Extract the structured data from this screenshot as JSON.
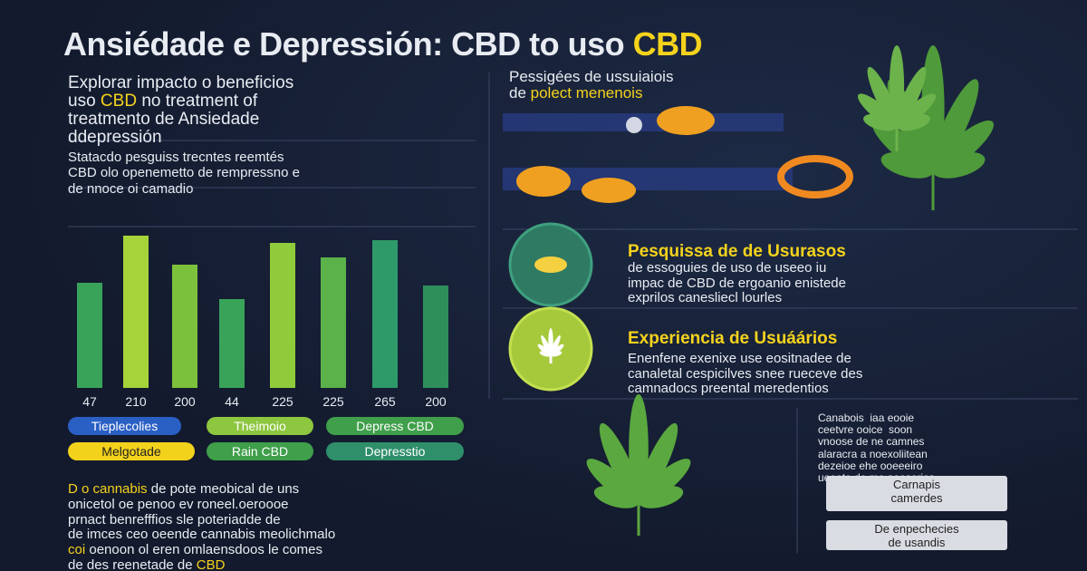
{
  "title": {
    "main": "Ansiédade e Depressión: CBD to uso ",
    "highlight": "CBD"
  },
  "intro": {
    "l1": "Explorar impacto o beneficios",
    "l2a": "uso ",
    "l2b": "CBD",
    "l2c": " no treatment of",
    "l3": "treatmento de Ansiedade",
    "l4": "ddepressión"
  },
  "study": [
    "Statacdo pesguiss trecntes reemtés",
    "CBD olo openemetto de rempressno e",
    "de nnoce oi camadio"
  ],
  "chart": {
    "labels": [
      "47",
      "210",
      "200",
      "44",
      "225",
      "225",
      "265",
      "200"
    ]
  },
  "legend": [
    {
      "label": "Tieplecolies",
      "color": "#2a5fc4"
    },
    {
      "label": "Theimoio",
      "color": "#8dc63f"
    },
    {
      "label": "Depress CBD",
      "color": "#3f9f4a"
    },
    {
      "label": "Melgotade",
      "color": "#f2d21b"
    },
    {
      "label": "Rain CBD",
      "color": "#3f9f4a"
    },
    {
      "label": "Depresstio",
      "color": "#2e8f6a"
    }
  ],
  "bottom_text": {
    "l1a": "D o cannabis",
    "l1b": " de pote meobical de uns",
    "l2": "onicetol oe penoo ev roneel.oeroooe",
    "l3": "prnact benrefffios sle poteriadde de",
    "l4": "de imces ceo oeende cannabis meolichmalo",
    "l5a": "coi",
    "l5b": " oenoon ol eren omlaensdoos le comes",
    "l6a": "de des reenetade de ",
    "l6b": "CBD"
  },
  "users": {
    "l1": "Pessigées de ussuiaiois",
    "l2a": "de ",
    "l2b": "polect menenois"
  },
  "research": {
    "title": "Pesquissa de de Usurasos",
    "lines": [
      "de essoguies de uso de useeo iu",
      "impac de CBD de ergoanio enistede",
      "exprilos canesliecl lourles"
    ]
  },
  "experience": {
    "title": "Experiencia de Usuáários",
    "lines": [
      "Enenfene exenixe use eositnadee de",
      "canaletal cespicilves snee rueceve des",
      "camnadocs preental meredentios"
    ]
  },
  "side": {
    "lines": [
      "Canabois  iaa eooie",
      "ceetvre ooice  soon",
      "vnoose de ne camnes",
      "alaracra a noexoliitean",
      "dezeioe ehe ooeeeiro",
      "ueeoto de me aoosorios."
    ],
    "button1": [
      "Carnapis",
      "camerdes"
    ],
    "button2": [
      "De enpechecies",
      "de usandis"
    ]
  }
}
